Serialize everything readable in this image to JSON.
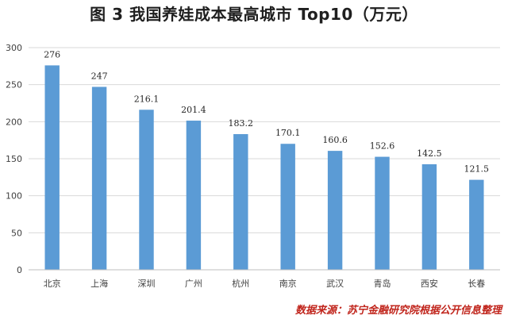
{
  "title": "图 3   我国养娃成本最高城市 Top10（万元）",
  "source": "数据来源：苏宁金融研究院根据公开信息整理",
  "colors": {
    "bar": "#5b9bd5",
    "grid": "#d9d9d9",
    "axis": "#bfbfbf",
    "source": "#c0241b"
  },
  "chart_data": {
    "type": "bar",
    "title": "图 3   我国养娃成本最高城市 Top10（万元）",
    "categories": [
      "北京",
      "上海",
      "深圳",
      "广州",
      "杭州",
      "南京",
      "武汉",
      "青岛",
      "西安",
      "长春"
    ],
    "values": [
      276,
      247,
      216.1,
      201.4,
      183.2,
      170.1,
      160.6,
      152.6,
      142.5,
      121.5
    ],
    "value_labels": [
      "276",
      "247",
      "216.1",
      "201.4",
      "183.2",
      "170.1",
      "160.6",
      "152.6",
      "142.5",
      "121.5"
    ],
    "ylim": [
      0,
      300
    ],
    "yticks": [
      0,
      50,
      100,
      150,
      200,
      250,
      300
    ],
    "grid": true,
    "xlabel": "",
    "ylabel": ""
  }
}
